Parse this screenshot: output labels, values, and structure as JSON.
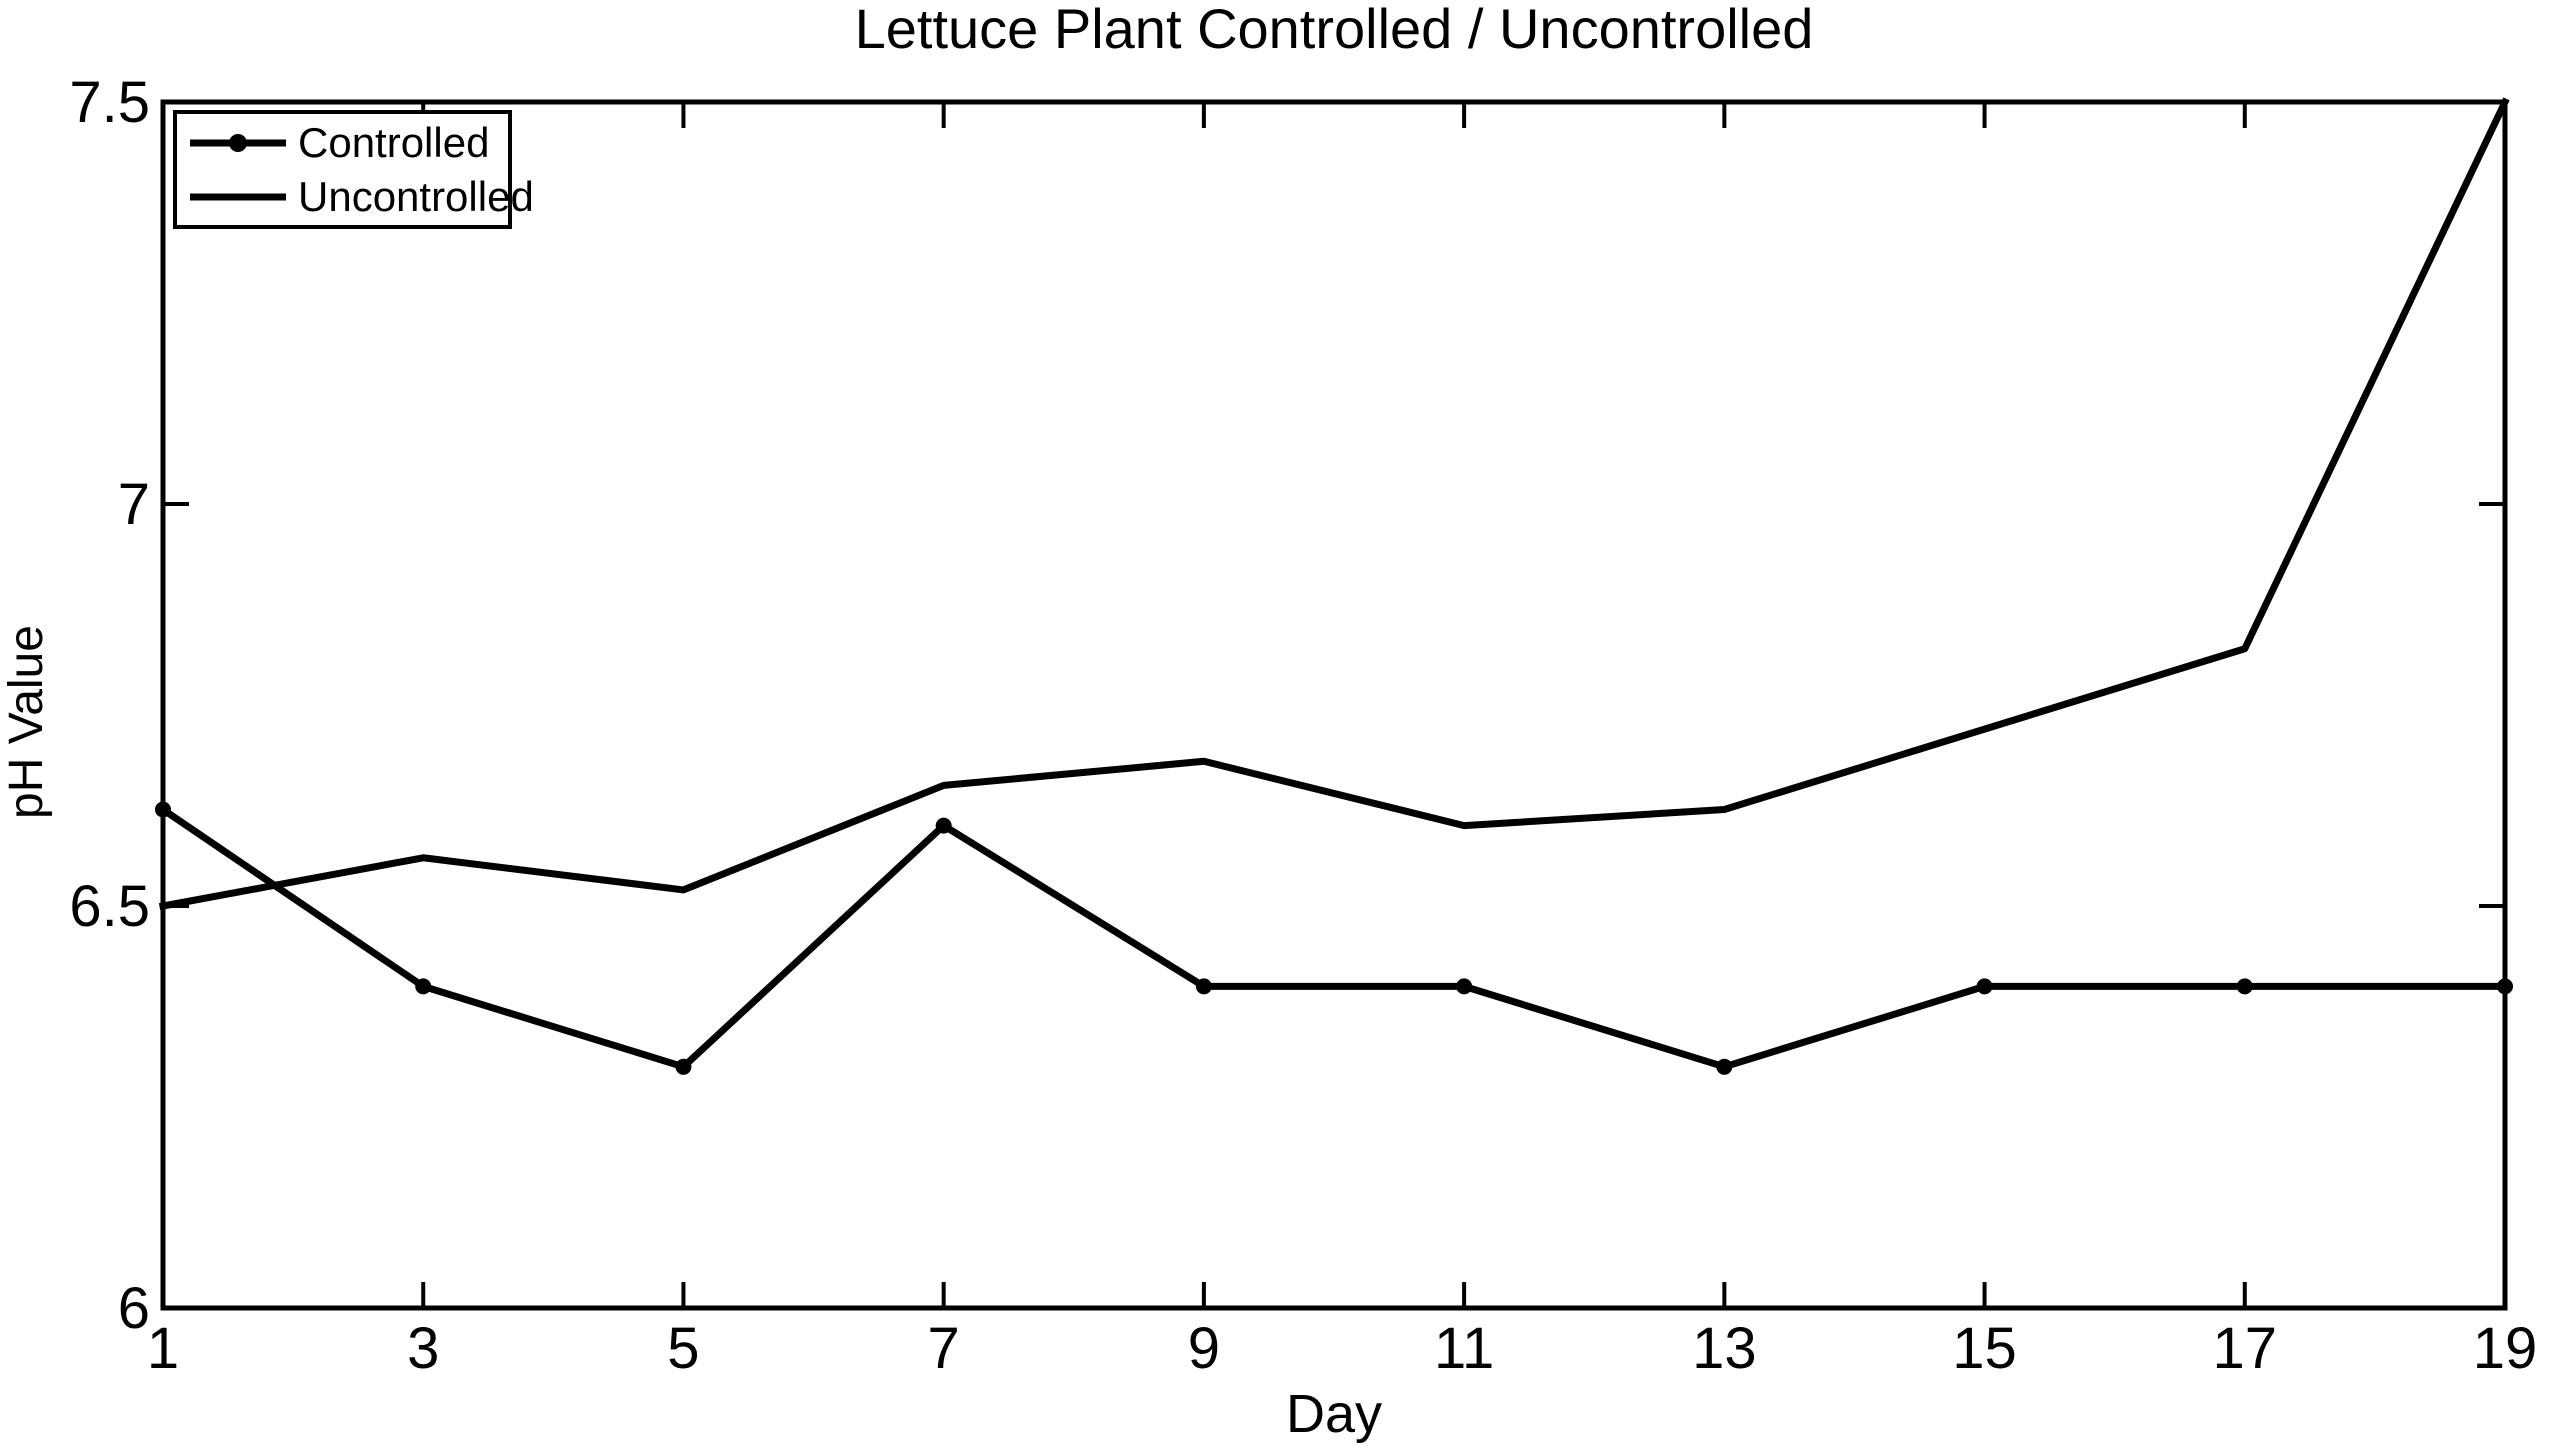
{
  "title": "Lettuce Plant Controlled / Uncontrolled",
  "chart_data": {
    "type": "line",
    "title": "Lettuce Plant Controlled / Uncontrolled",
    "xlabel": "Day",
    "ylabel": "pH Value",
    "x": [
      1,
      3,
      5,
      7,
      9,
      11,
      13,
      15,
      17,
      19
    ],
    "xlim": [
      1,
      19
    ],
    "ylim": [
      6,
      7.5
    ],
    "xticks": [
      1,
      3,
      5,
      7,
      9,
      11,
      13,
      15,
      17,
      19
    ],
    "yticks": [
      6,
      6.5,
      7,
      7.5
    ],
    "ytick_labels": [
      "6",
      "6.5",
      "7",
      "7.5"
    ],
    "grid": false,
    "legend_position": "top-left",
    "series": [
      {
        "name": "Controlled",
        "marker": "circle",
        "values": [
          6.62,
          6.4,
          6.3,
          6.6,
          6.4,
          6.4,
          6.3,
          6.4,
          6.4,
          6.4
        ]
      },
      {
        "name": "Uncontrolled",
        "marker": "none",
        "values": [
          6.5,
          6.56,
          6.52,
          6.65,
          6.68,
          6.6,
          6.62,
          6.72,
          6.82,
          7.5
        ]
      }
    ],
    "line_color": "#000000",
    "background_color": "#ffffff"
  }
}
